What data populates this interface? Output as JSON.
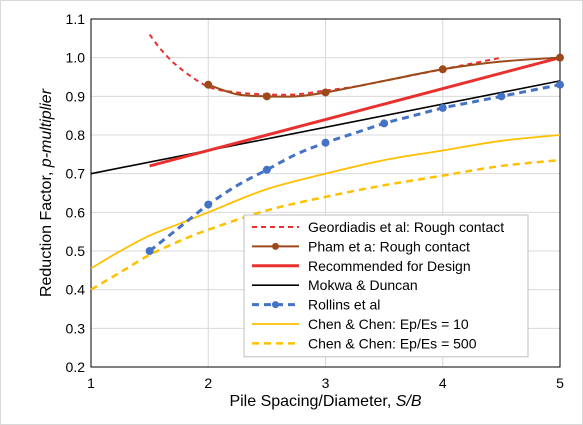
{
  "chart_data": {
    "type": "line",
    "xlabel_prefix": "Pile Spacing/Diameter, ",
    "xlabel_italic": "S/B",
    "ylabel_prefix": "Reduction Factor, ",
    "ylabel_italic": "p-multiplier",
    "xlim": [
      1,
      5
    ],
    "ylim": [
      0.2,
      1.1
    ],
    "x_ticks": [
      1,
      2,
      3,
      4,
      5
    ],
    "x_tick_labels": [
      "1",
      "2",
      "3",
      "4",
      "5"
    ],
    "y_ticks": [
      0.2,
      0.3,
      0.4,
      0.5,
      0.6,
      0.7,
      0.8,
      0.9,
      1.0,
      1.1
    ],
    "y_tick_labels": [
      "0.2",
      "0.3",
      "0.4",
      "0.5",
      "0.6",
      "0.7",
      "0.8",
      "0.9",
      "1.0",
      "1.1"
    ],
    "grid": true,
    "legend_position": "bottom-right",
    "series": [
      {
        "name": "Geordiadis et al: Rough contact",
        "color": "#e8312f",
        "dash": "5,4",
        "width": 2,
        "markers": false,
        "x": [
          1.5,
          1.6,
          1.75,
          2.0,
          2.25,
          2.5,
          2.75,
          3.0,
          3.25,
          3.5,
          3.75,
          4.0,
          4.25,
          4.5
        ],
        "y": [
          1.06,
          1.02,
          0.975,
          0.925,
          0.91,
          0.905,
          0.905,
          0.915,
          0.925,
          0.94,
          0.955,
          0.97,
          0.985,
          1.0
        ]
      },
      {
        "name": "Pham et a: Rough contact",
        "color": "#9c4a1a",
        "dash": "",
        "width": 2,
        "markers": true,
        "x": [
          2.0,
          2.25,
          2.5,
          2.75,
          3.0,
          3.5,
          4.0,
          4.5,
          5.0
        ],
        "y": [
          0.93,
          0.905,
          0.9,
          0.9,
          0.91,
          0.94,
          0.97,
          0.99,
          1.0
        ],
        "marker_x": [
          2.0,
          2.5,
          3.0,
          4.0,
          5.0
        ],
        "marker_y": [
          0.93,
          0.9,
          0.91,
          0.97,
          1.0
        ]
      },
      {
        "name": "Recommended for Design",
        "color": "#e8312f",
        "dash": "",
        "width": 3,
        "markers": false,
        "x": [
          1.5,
          5.0
        ],
        "y": [
          0.72,
          1.0
        ]
      },
      {
        "name": "Mokwa & Duncan",
        "color": "#000000",
        "dash": "",
        "width": 1.6,
        "markers": false,
        "x": [
          1.0,
          5.0
        ],
        "y": [
          0.7,
          0.94
        ]
      },
      {
        "name": "Rollins et al",
        "color": "#4472c4",
        "dash": "7,5",
        "width": 3,
        "markers": true,
        "x": [
          1.5,
          1.75,
          2.0,
          2.25,
          2.5,
          2.75,
          3.0,
          3.25,
          3.5,
          3.75,
          4.0,
          4.25,
          4.5,
          4.75,
          5.0
        ],
        "y": [
          0.5,
          0.56,
          0.62,
          0.67,
          0.71,
          0.75,
          0.78,
          0.805,
          0.83,
          0.85,
          0.87,
          0.885,
          0.9,
          0.915,
          0.93
        ],
        "marker_x": [
          1.5,
          2.0,
          2.5,
          3.0,
          3.5,
          4.0,
          4.5,
          5.0
        ],
        "marker_y": [
          0.5,
          0.62,
          0.71,
          0.78,
          0.83,
          0.87,
          0.9,
          0.93
        ]
      },
      {
        "name": "Chen & Chen: Ep/Es = 10",
        "color": "#ffc000",
        "dash": "",
        "width": 1.8,
        "markers": false,
        "x": [
          1.0,
          1.25,
          1.5,
          1.75,
          2.0,
          2.5,
          3.0,
          3.5,
          4.0,
          4.5,
          5.0
        ],
        "y": [
          0.455,
          0.5,
          0.54,
          0.57,
          0.6,
          0.66,
          0.7,
          0.735,
          0.76,
          0.785,
          0.8
        ],
        "marker_x": [],
        "marker_y": []
      },
      {
        "name": "Chen & Chen: Ep/Es = 500",
        "color": "#ffc000",
        "dash": "7,5",
        "width": 2.5,
        "markers": false,
        "x": [
          1.0,
          1.25,
          1.5,
          1.75,
          2.0,
          2.5,
          3.0,
          3.5,
          4.0,
          4.5,
          5.0
        ],
        "y": [
          0.4,
          0.445,
          0.49,
          0.525,
          0.555,
          0.605,
          0.64,
          0.67,
          0.695,
          0.72,
          0.735
        ],
        "marker_x": [],
        "marker_y": []
      }
    ]
  }
}
